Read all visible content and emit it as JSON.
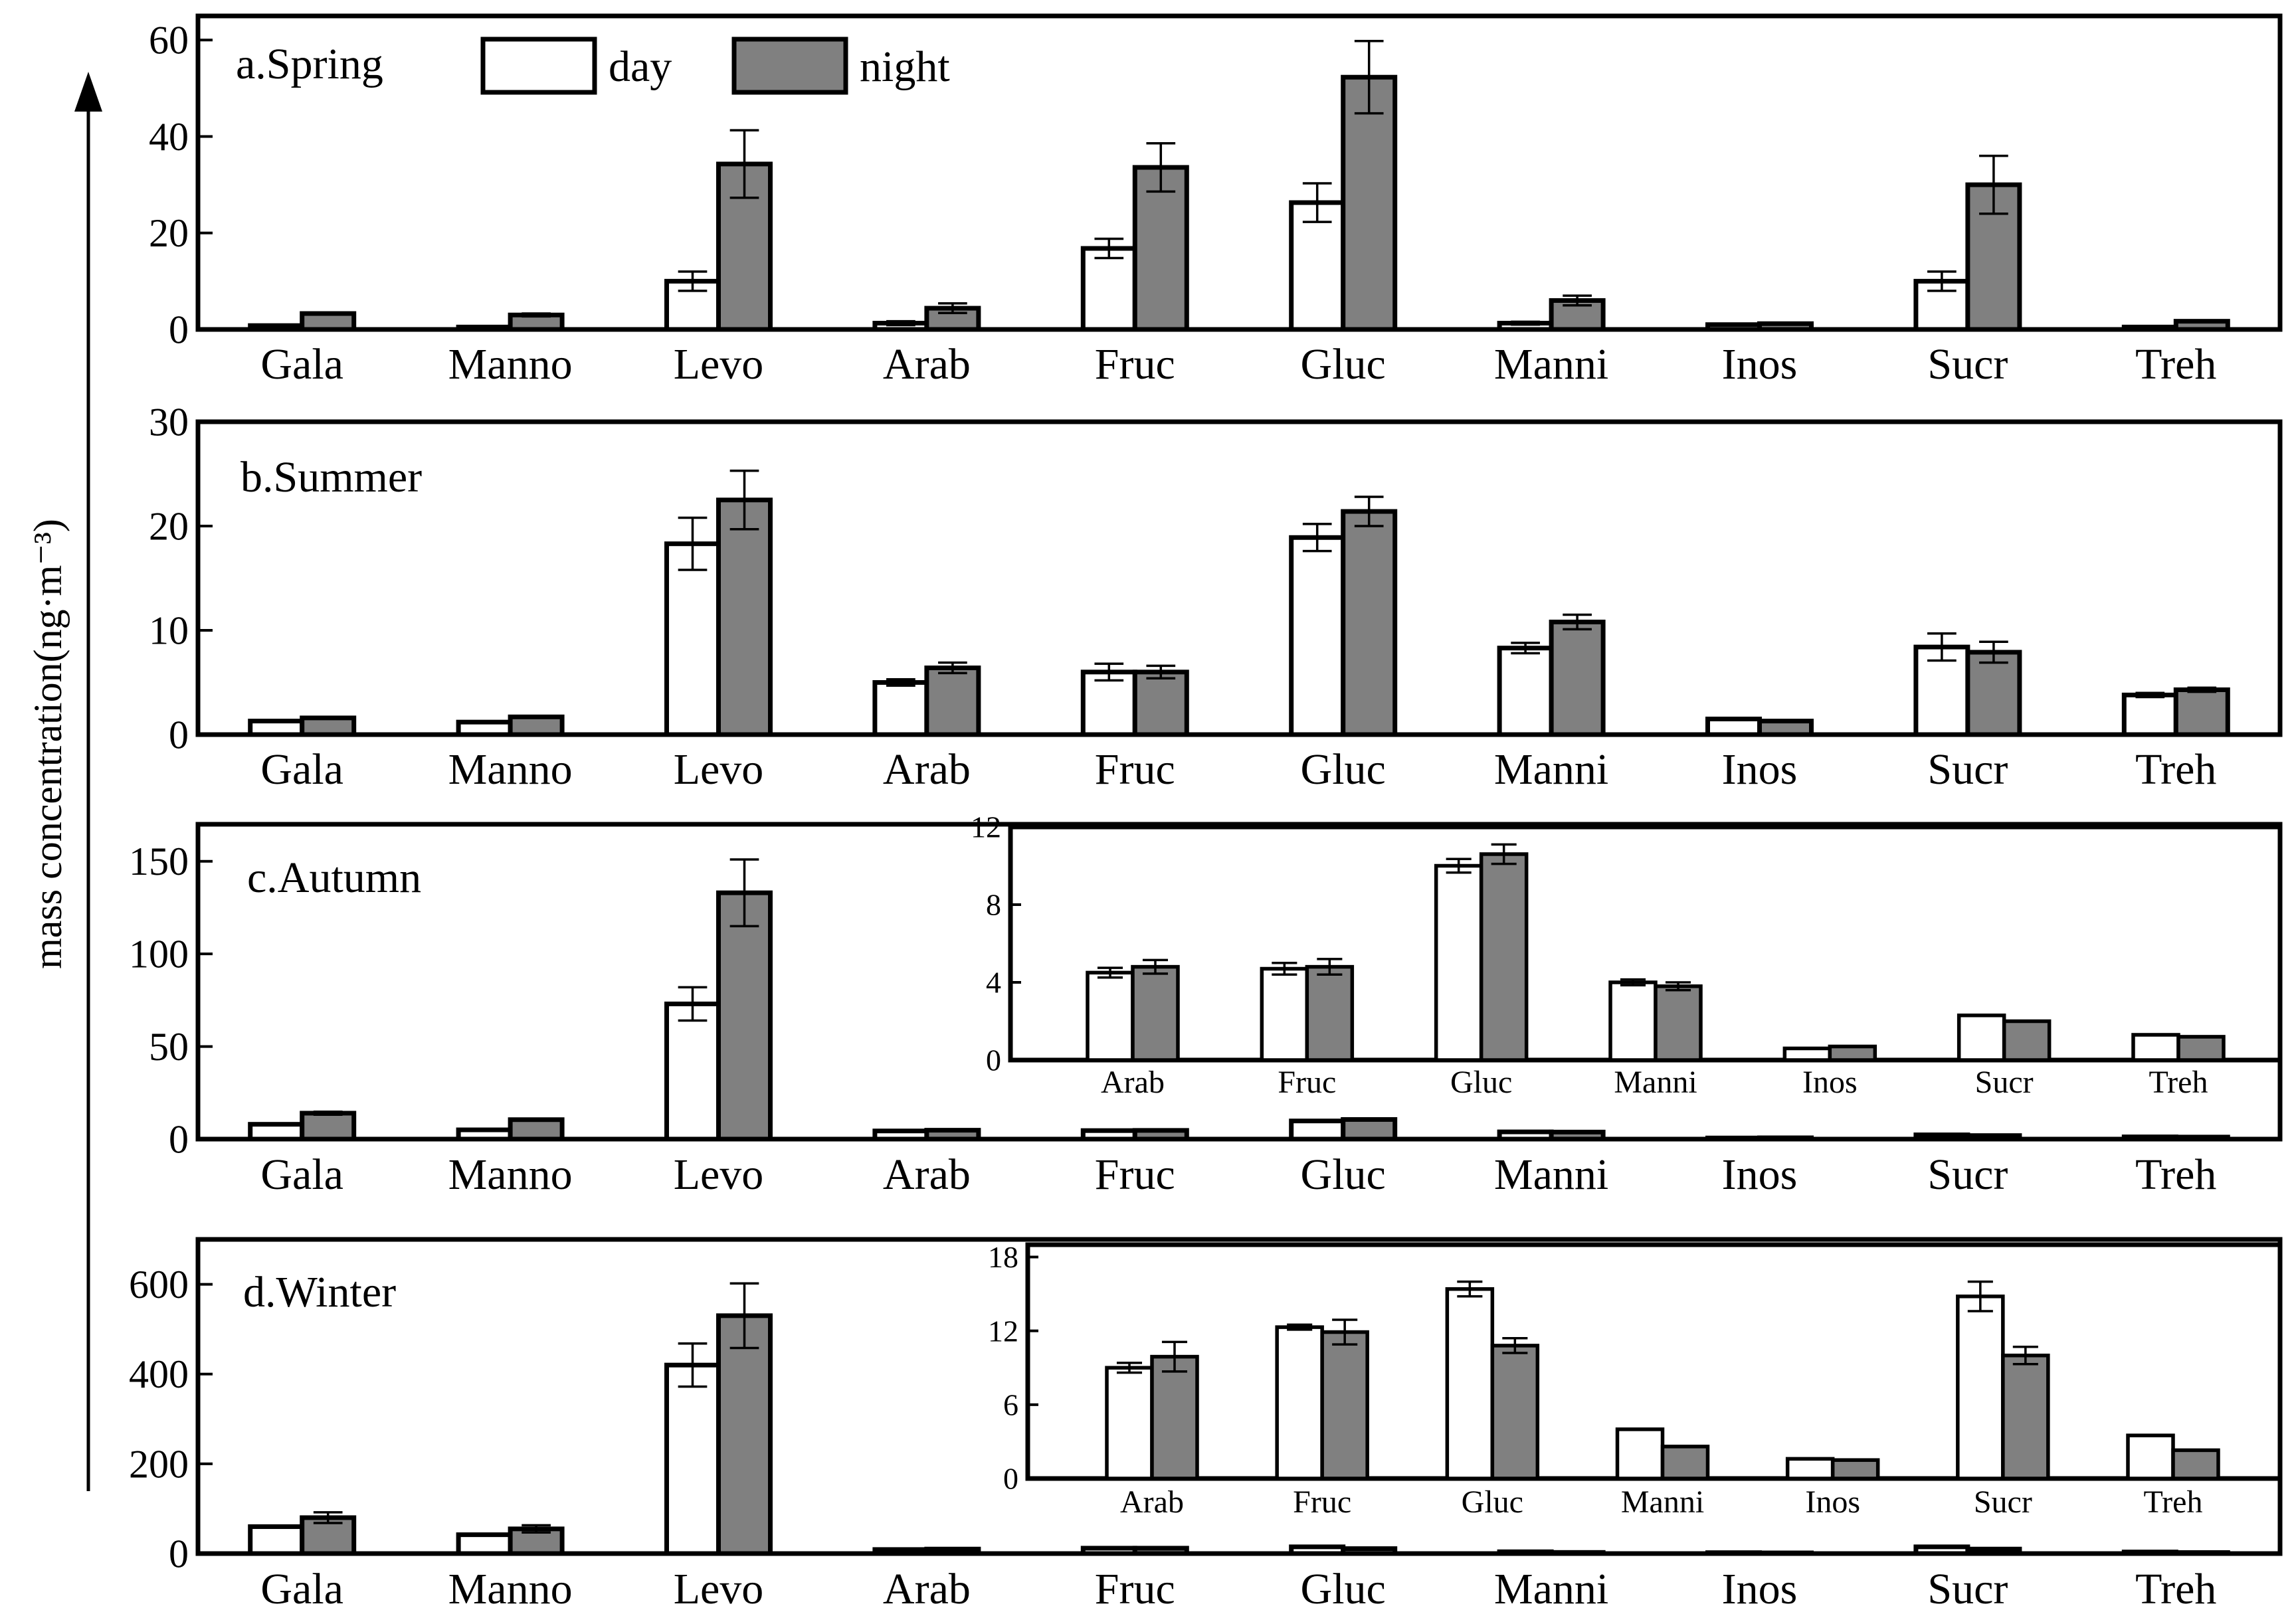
{
  "y_axis_label": "mass concentration(ng·m⁻³)",
  "colors": {
    "day": "#ffffff",
    "night": "#808080",
    "stroke": "#000000"
  },
  "chart_data": [
    {
      "id": "spring",
      "type": "bar",
      "title": "a.Spring",
      "legend": {
        "labels": [
          "day",
          "night"
        ],
        "position": "top"
      },
      "categories": [
        "Gala",
        "Manno",
        "Levo",
        "Arab",
        "Fruc",
        "Gluc",
        "Manni",
        "Inos",
        "Sucr",
        "Treh"
      ],
      "ylim": [
        0,
        65
      ],
      "yticks": [
        0,
        20,
        40,
        60
      ],
      "ytick_labels": [
        "0",
        "20",
        "40",
        "60"
      ],
      "series": [
        {
          "name": "day",
          "values": [
            0.8,
            0.5,
            10,
            1.3,
            16.8,
            26.3,
            1.3,
            1.0,
            10,
            0.5
          ],
          "errors": [
            0,
            0,
            2,
            0.4,
            2,
            4,
            0.3,
            0,
            2,
            0
          ]
        },
        {
          "name": "night",
          "values": [
            3.3,
            3.0,
            34.3,
            4.4,
            33.6,
            52.3,
            6.0,
            1.2,
            30,
            1.7
          ],
          "errors": [
            0,
            0.3,
            7,
            1.0,
            5,
            7.5,
            1.0,
            0,
            6,
            0
          ]
        }
      ]
    },
    {
      "id": "summer",
      "type": "bar",
      "title": "b.Summer",
      "categories": [
        "Gala",
        "Manno",
        "Levo",
        "Arab",
        "Fruc",
        "Gluc",
        "Manni",
        "Inos",
        "Sucr",
        "Treh"
      ],
      "ylim": [
        0,
        30
      ],
      "yticks": [
        0,
        10,
        20,
        30
      ],
      "ytick_labels": [
        "0",
        "10",
        "20",
        "30"
      ],
      "series": [
        {
          "name": "day",
          "values": [
            1.3,
            1.2,
            18.3,
            5.0,
            6.0,
            18.9,
            8.3,
            1.5,
            8.4,
            3.8
          ],
          "errors": [
            0,
            0,
            2.5,
            0.3,
            0.8,
            1.3,
            0.5,
            0.1,
            1.3,
            0.2
          ]
        },
        {
          "name": "night",
          "values": [
            1.6,
            1.7,
            22.5,
            6.4,
            6.0,
            21.4,
            10.8,
            1.3,
            7.9,
            4.3
          ],
          "errors": [
            0,
            0,
            2.8,
            0.5,
            0.6,
            1.4,
            0.7,
            0,
            1.0,
            0.2
          ]
        }
      ]
    },
    {
      "id": "autumn",
      "type": "bar",
      "title": "c.Autumn",
      "categories": [
        "Gala",
        "Manno",
        "Levo",
        "Arab",
        "Fruc",
        "Gluc",
        "Manni",
        "Inos",
        "Sucr",
        "Treh"
      ],
      "ylim": [
        0,
        170
      ],
      "yticks": [
        0,
        50,
        100,
        150
      ],
      "ytick_labels": [
        "0",
        "50",
        "100",
        "150"
      ],
      "series": [
        {
          "name": "day",
          "values": [
            8,
            5,
            73,
            4.4,
            4.6,
            9.8,
            3.9,
            0.6,
            2.3,
            1.2
          ],
          "errors": [
            0,
            0,
            9,
            0,
            0,
            0,
            0,
            0,
            0,
            0
          ]
        },
        {
          "name": "night",
          "values": [
            14,
            10.5,
            133,
            4.8,
            4.7,
            10.6,
            3.8,
            0.7,
            1.9,
            1.1
          ],
          "errors": [
            0.8,
            0.5,
            18,
            0,
            0,
            0,
            0,
            0,
            0,
            0
          ]
        }
      ],
      "inset": {
        "categories": [
          "Arab",
          "Fruc",
          "Gluc",
          "Manni",
          "Inos",
          "Sucr",
          "Treh"
        ],
        "ylim": [
          0,
          12
        ],
        "yticks": [
          0,
          4,
          8,
          12
        ],
        "ytick_labels": [
          "0",
          "4",
          "8",
          "12"
        ],
        "series": [
          {
            "name": "day",
            "values": [
              4.5,
              4.7,
              10.0,
              4.0,
              0.6,
              2.3,
              1.3
            ],
            "errors": [
              0.25,
              0.3,
              0.35,
              0.15,
              0,
              0,
              0
            ]
          },
          {
            "name": "night",
            "values": [
              4.8,
              4.8,
              10.6,
              3.8,
              0.7,
              2.0,
              1.2
            ],
            "errors": [
              0.35,
              0.4,
              0.5,
              0.2,
              0,
              0,
              0
            ]
          }
        ]
      }
    },
    {
      "id": "winter",
      "type": "bar",
      "title": "d.Winter",
      "categories": [
        "Gala",
        "Manno",
        "Levo",
        "Arab",
        "Fruc",
        "Gluc",
        "Manni",
        "Inos",
        "Sucr",
        "Treh"
      ],
      "ylim": [
        0,
        700
      ],
      "yticks": [
        0,
        200,
        400,
        600
      ],
      "ytick_labels": [
        "0",
        "200",
        "400",
        "600"
      ],
      "series": [
        {
          "name": "day",
          "values": [
            60,
            42,
            420,
            9,
            12,
            15,
            4,
            2,
            15,
            3.5
          ],
          "errors": [
            0,
            0,
            48,
            0,
            0,
            0,
            0,
            0,
            0,
            0
          ]
        },
        {
          "name": "night",
          "values": [
            80,
            55,
            530,
            10,
            12,
            11,
            2.5,
            1.5,
            10,
            2.3
          ],
          "errors": [
            12,
            8,
            72,
            0,
            0,
            0,
            0,
            0,
            0,
            0
          ]
        }
      ],
      "inset": {
        "categories": [
          "Arab",
          "Fruc",
          "Gluc",
          "Manni",
          "Inos",
          "Sucr",
          "Treh"
        ],
        "ylim": [
          0,
          19
        ],
        "yticks": [
          0,
          6,
          12,
          18
        ],
        "ytick_labels": [
          "0",
          "6",
          "12",
          "18"
        ],
        "series": [
          {
            "name": "day",
            "values": [
              9.0,
              12.3,
              15.4,
              4.0,
              1.6,
              14.8,
              3.5
            ],
            "errors": [
              0.4,
              0.2,
              0.6,
              0,
              0,
              1.2,
              0
            ]
          },
          {
            "name": "night",
            "values": [
              9.9,
              11.9,
              10.8,
              2.6,
              1.5,
              10.0,
              2.3
            ],
            "errors": [
              1.2,
              1.0,
              0.6,
              0,
              0,
              0.7,
              0
            ]
          }
        ]
      }
    }
  ]
}
